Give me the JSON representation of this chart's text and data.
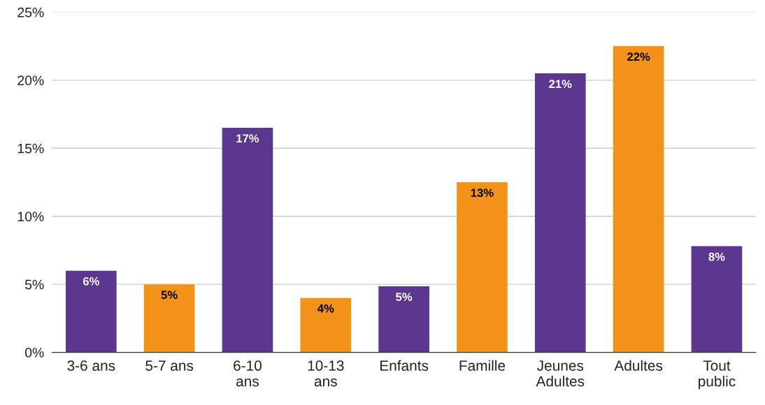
{
  "chart_data": {
    "type": "bar",
    "categories": [
      "3-6 ans",
      "5-7 ans",
      "6-10\nans",
      "10-13\nans",
      "Enfants",
      "Famille",
      "Jeunes\nAdultes",
      "Adultes",
      "Tout\npublic"
    ],
    "values": [
      6.0,
      5.0,
      16.5,
      4.0,
      4.85,
      12.5,
      20.5,
      22.5,
      7.8
    ],
    "colors": [
      "#5b3790",
      "#f39219",
      "#5b3790",
      "#f39219",
      "#5b3790",
      "#f39219",
      "#5b3790",
      "#f39219",
      "#5b3790"
    ],
    "value_labels": [
      "6%",
      "5%",
      "17%",
      "4%",
      "5%",
      "13%",
      "21%",
      "22%",
      "8%"
    ],
    "ylim": [
      0,
      25
    ],
    "yticks": [
      {
        "value": 0,
        "label": "0%"
      },
      {
        "value": 5,
        "label": "5%"
      },
      {
        "value": 10,
        "label": "10%"
      },
      {
        "value": 15,
        "label": "15%"
      },
      {
        "value": 20,
        "label": "20%"
      },
      {
        "value": 25,
        "label": "25%"
      }
    ],
    "grid": "y"
  }
}
